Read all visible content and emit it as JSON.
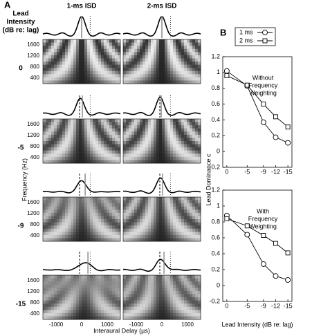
{
  "panel_a": {
    "label": "A",
    "row_header": [
      "Lead",
      "Intensity",
      "(dB re: lag)"
    ],
    "columns": [
      "1-ms ISD",
      "2-ms ISD"
    ],
    "rows": [
      "0",
      "-5",
      "-9",
      "-15"
    ],
    "yticks": [
      "1600",
      "1200",
      "800",
      "400"
    ],
    "ylabel": "Frequency (Hz)",
    "xticks": [
      "-1000",
      "0",
      "1000"
    ],
    "xlabel": "Interaural Delay (µs)"
  },
  "panel_b": {
    "label": "B",
    "ylabel": "Lead Dominance c",
    "xlabel": "Lead Intensity (dB re: lag)"
  },
  "chart_data": [
    {
      "type": "line",
      "annotation": [
        "Without",
        "Frequency",
        "Weighting"
      ],
      "x": [
        0,
        -5,
        -9,
        -12,
        -15
      ],
      "xlim": [
        1,
        -16
      ],
      "xticks": [
        0,
        -5,
        -9,
        -12,
        -15
      ],
      "ylim": [
        -0.2,
        1.2
      ],
      "yticks": [
        -0.2,
        0,
        0.2,
        0.4,
        0.6,
        0.8,
        1,
        1.2
      ],
      "legend": "top-right",
      "series": [
        {
          "name": "1 ms",
          "color": "#000000",
          "marker": "circle",
          "values": [
            1.02,
            0.83,
            0.37,
            0.18,
            0.11
          ]
        },
        {
          "name": "2 ms",
          "color": "#000000",
          "marker": "square",
          "values": [
            0.96,
            0.84,
            0.6,
            0.44,
            0.31
          ]
        }
      ]
    },
    {
      "type": "line",
      "annotation": [
        "With",
        "Frequency",
        "Weighting"
      ],
      "x": [
        0,
        -5,
        -9,
        -12,
        -15
      ],
      "xlim": [
        1,
        -16
      ],
      "xticks": [
        0,
        -5,
        -9,
        -12,
        -15
      ],
      "ylim": [
        -0.2,
        1.2
      ],
      "yticks": [
        -0.2,
        0,
        0.2,
        0.4,
        0.6,
        0.8,
        1,
        1.2
      ],
      "series": [
        {
          "name": "1 ms",
          "color": "#000000",
          "marker": "circle",
          "values": [
            0.88,
            0.64,
            0.27,
            0.12,
            0.07
          ]
        },
        {
          "name": "2 ms",
          "color": "#000000",
          "marker": "square",
          "values": [
            0.84,
            0.75,
            0.63,
            0.53,
            0.41
          ]
        }
      ]
    }
  ]
}
